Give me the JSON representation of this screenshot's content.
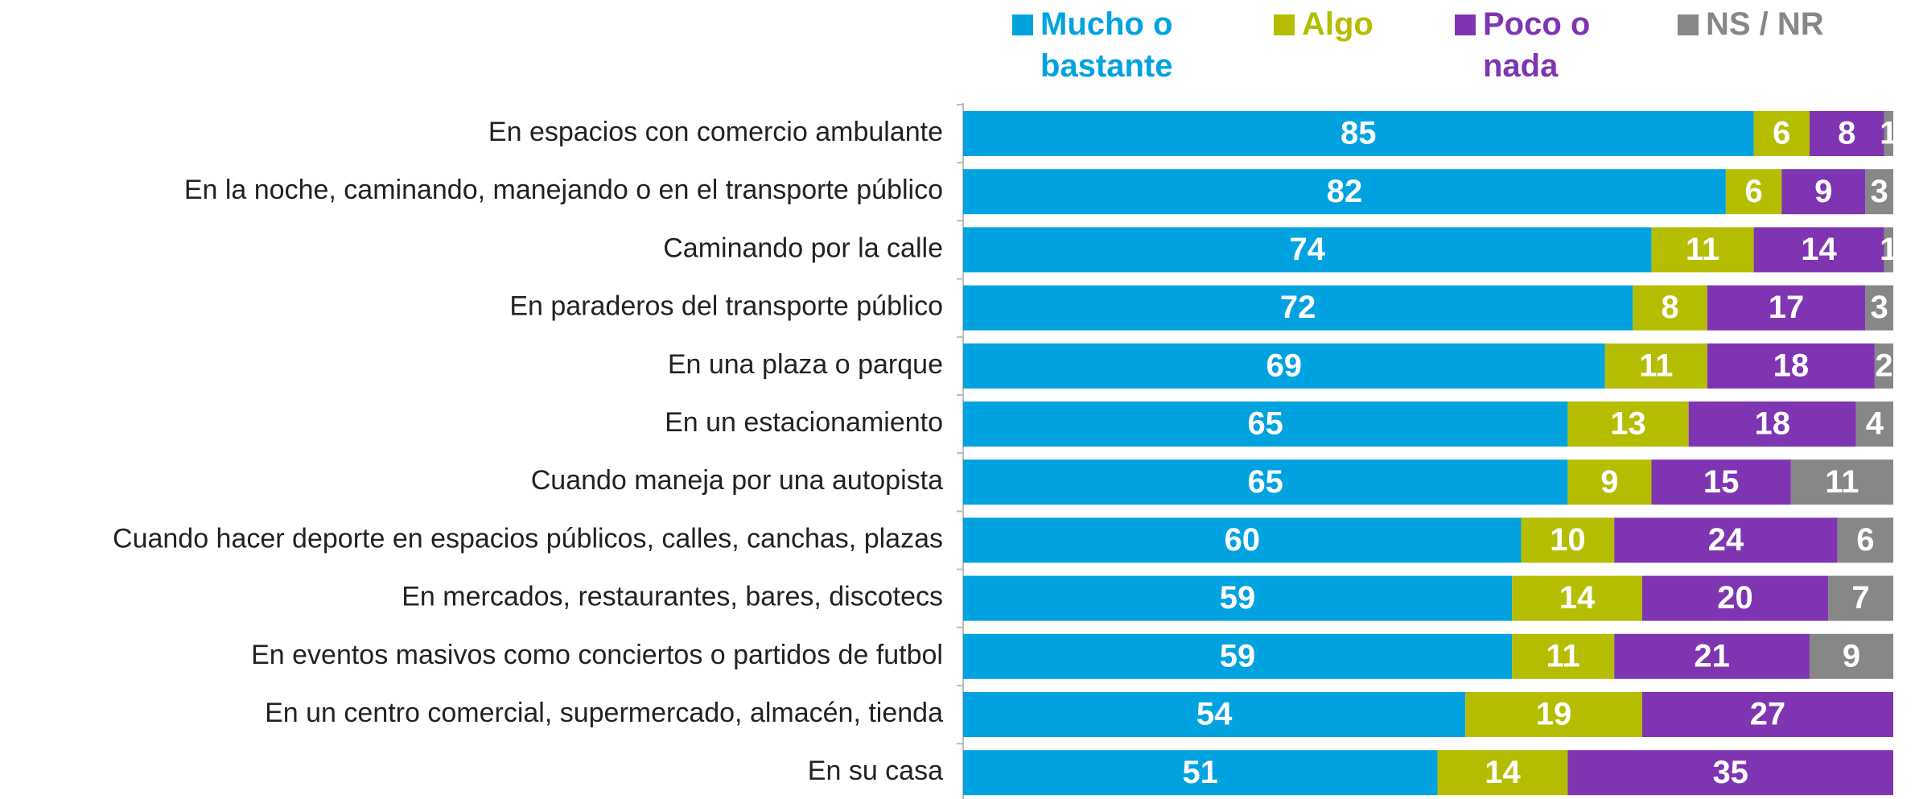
{
  "chart_data": {
    "type": "stacked_bar_horizontal",
    "categories": [
      "En espacios con comercio ambulante",
      "En la noche, caminando, manejando o en el transporte público",
      "Caminando por la calle",
      "En paraderos del transporte público",
      "En una plaza o parque",
      "En un estacionamiento",
      "Cuando maneja por una autopista",
      "Cuando hacer deporte en espacios públicos, calles, canchas, plazas",
      "En mercados, restaurantes, bares, discotecs",
      "En eventos masivos como conciertos o partidos de futbol",
      "En un centro comercial, supermercado, almacén, tienda",
      "En su casa"
    ],
    "series": [
      {
        "name": "Mucho o bastante",
        "color": "#00a3e0",
        "values": [
          85,
          82,
          74,
          72,
          69,
          65,
          65,
          60,
          59,
          59,
          54,
          51
        ]
      },
      {
        "name": "Algo",
        "color": "#b5bd00",
        "values": [
          6,
          6,
          11,
          8,
          11,
          13,
          9,
          10,
          14,
          11,
          19,
          14
        ]
      },
      {
        "name": "Poco o nada",
        "color": "#7f35b2",
        "values": [
          8,
          9,
          14,
          17,
          18,
          18,
          15,
          24,
          20,
          21,
          27,
          35
        ]
      },
      {
        "name": "NS / NR",
        "color": "#878787",
        "values": [
          1,
          3,
          1,
          3,
          2,
          4,
          11,
          6,
          7,
          9,
          null,
          null
        ]
      }
    ],
    "xlim": [
      0,
      100
    ]
  }
}
